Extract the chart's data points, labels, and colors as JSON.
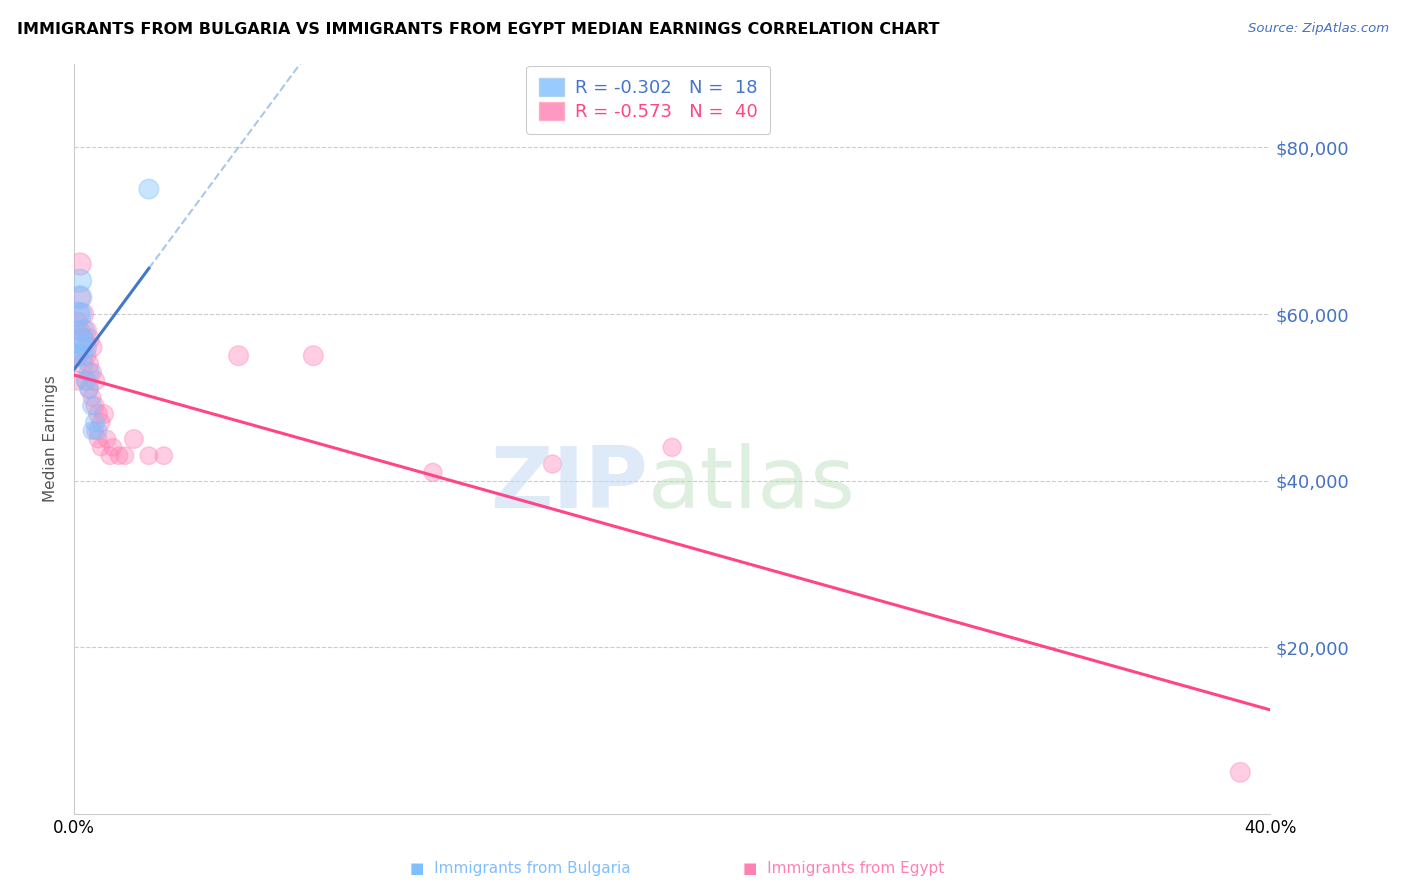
{
  "title": "IMMIGRANTS FROM BULGARIA VS IMMIGRANTS FROM EGYPT MEDIAN EARNINGS CORRELATION CHART",
  "source": "Source: ZipAtlas.com",
  "ylabel": "Median Earnings",
  "y_ticks": [
    20000,
    40000,
    60000,
    80000
  ],
  "y_tick_labels": [
    "$20,000",
    "$40,000",
    "$60,000",
    "$80,000"
  ],
  "xlim": [
    0.0,
    0.4
  ],
  "ylim": [
    0,
    90000
  ],
  "legend_r_bulgaria": "-0.302",
  "legend_n_bulgaria": "18",
  "legend_r_egypt": "-0.573",
  "legend_n_egypt": "40",
  "color_bulgaria": "#80bfff",
  "color_egypt": "#ff80b3",
  "color_bulgaria_line": "#4477cc",
  "color_egypt_line": "#ff4488",
  "color_dashed_line": "#aac8e8",
  "bulgaria_x": [
    0.001,
    0.001,
    0.001,
    0.002,
    0.002,
    0.002,
    0.003,
    0.003,
    0.003,
    0.004,
    0.004,
    0.005,
    0.005,
    0.006,
    0.006,
    0.007,
    0.008,
    0.025
  ],
  "bulgaria_y": [
    57000,
    60000,
    55000,
    62000,
    64000,
    60000,
    58000,
    57000,
    55000,
    56000,
    52000,
    53000,
    51000,
    49000,
    46000,
    47000,
    46000,
    75000
  ],
  "bulgaria_size": [
    400,
    300,
    250,
    280,
    270,
    260,
    250,
    220,
    200,
    220,
    200,
    200,
    180,
    180,
    160,
    180,
    160,
    200
  ],
  "egypt_x": [
    0.001,
    0.001,
    0.001,
    0.002,
    0.002,
    0.002,
    0.003,
    0.003,
    0.003,
    0.004,
    0.004,
    0.004,
    0.005,
    0.005,
    0.005,
    0.006,
    0.006,
    0.006,
    0.007,
    0.007,
    0.007,
    0.008,
    0.008,
    0.009,
    0.009,
    0.01,
    0.011,
    0.012,
    0.013,
    0.015,
    0.017,
    0.02,
    0.025,
    0.03,
    0.055,
    0.08,
    0.12,
    0.16,
    0.2,
    0.39
  ],
  "egypt_y": [
    59000,
    55000,
    52000,
    66000,
    62000,
    58000,
    60000,
    57000,
    54000,
    58000,
    55000,
    52000,
    57000,
    54000,
    51000,
    56000,
    53000,
    50000,
    52000,
    49000,
    46000,
    48000,
    45000,
    47000,
    44000,
    48000,
    45000,
    43000,
    44000,
    43000,
    43000,
    45000,
    43000,
    43000,
    55000,
    55000,
    41000,
    42000,
    44000,
    5000
  ],
  "egypt_size": [
    220,
    200,
    180,
    250,
    220,
    200,
    230,
    210,
    190,
    220,
    200,
    180,
    210,
    190,
    170,
    200,
    180,
    160,
    190,
    170,
    150,
    180,
    160,
    170,
    150,
    180,
    160,
    160,
    160,
    160,
    160,
    180,
    160,
    160,
    200,
    200,
    170,
    170,
    170,
    200
  ]
}
